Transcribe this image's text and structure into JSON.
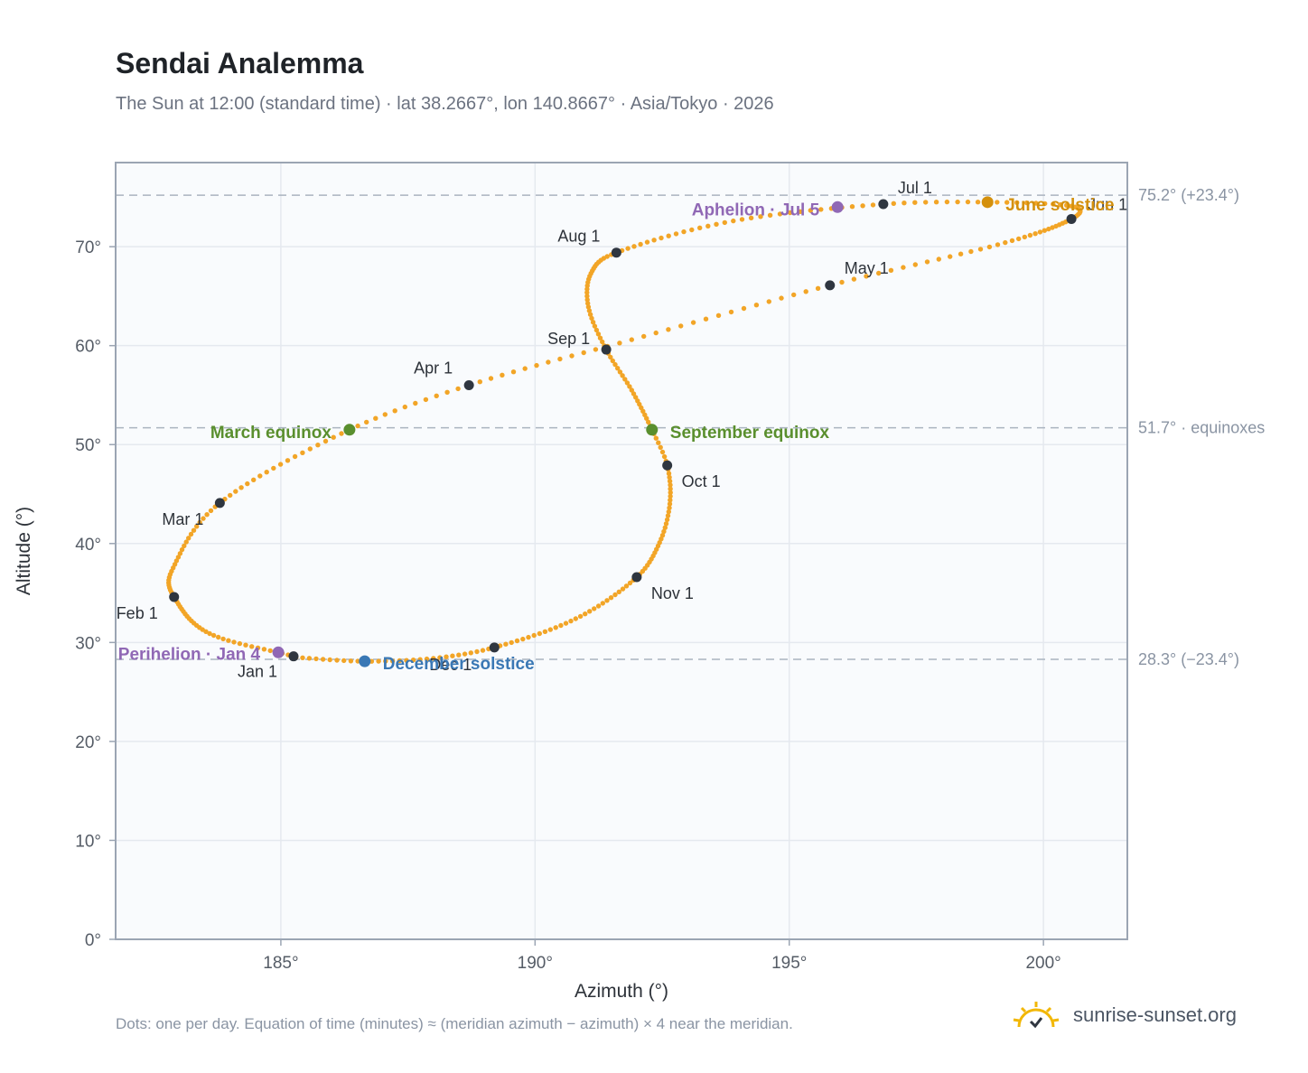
{
  "header": {
    "title": "Sendai Analemma",
    "subtitle": "The Sun at 12:00 (standard time) · lat 38.2667°, lon 140.8667° · Asia/Tokyo · 2026"
  },
  "footer": {
    "note": "Dots: one per day. Equation of time (minutes) ≈ (meridian azimuth − azimuth) × 4 near the meridian.",
    "brand": "sunrise-sunset.org",
    "brand_icon": "sun-logo-icon"
  },
  "colors": {
    "path": "#f2a527",
    "month_marker": "#2f3640",
    "equinox": "#5a8f2e",
    "june_solstice": "#d4900c",
    "december_solstice": "#3a78b5",
    "apsis": "#9068b5",
    "plot_bg": "#f9fbfd",
    "grid": "#e5e9ef",
    "reference_line": "#aab4c0",
    "frame": "#9ba5b3"
  },
  "chart_data": {
    "type": "scatter",
    "title": "Sendai Analemma",
    "xlabel": "Azimuth (°)",
    "ylabel": "Altitude (°)",
    "xlim": [
      181.75,
      201.65
    ],
    "ylim": [
      0,
      78.5
    ],
    "x_ticks": [
      185,
      190,
      195,
      200
    ],
    "x_tick_labels": [
      "185°",
      "190°",
      "195°",
      "200°"
    ],
    "y_ticks": [
      0,
      10,
      20,
      30,
      40,
      50,
      60,
      70
    ],
    "y_tick_labels": [
      "0°",
      "10°",
      "20°",
      "30°",
      "40°",
      "50°",
      "60°",
      "70°"
    ],
    "grid": true,
    "reference_lines": [
      {
        "y": 75.2,
        "label": "75.2° (+23.4°)"
      },
      {
        "y": 51.7,
        "label": "51.7° · equinoxes"
      },
      {
        "y": 28.3,
        "label": "28.3° (−23.4°)"
      }
    ],
    "monthly_markers": [
      {
        "label": "Jan 1",
        "date": "2026-01-01",
        "azimuth": 185.25,
        "altitude": 28.6
      },
      {
        "label": "Feb 1",
        "date": "2026-02-01",
        "azimuth": 182.9,
        "altitude": 34.6
      },
      {
        "label": "Mar 1",
        "date": "2026-03-01",
        "azimuth": 183.8,
        "altitude": 44.1
      },
      {
        "label": "Apr 1",
        "date": "2026-04-01",
        "azimuth": 188.7,
        "altitude": 56.0
      },
      {
        "label": "May 1",
        "date": "2026-05-01",
        "azimuth": 195.8,
        "altitude": 66.1
      },
      {
        "label": "Jun 1",
        "date": "2026-06-01",
        "azimuth": 200.55,
        "altitude": 72.8
      },
      {
        "label": "Jul 1",
        "date": "2026-07-01",
        "azimuth": 196.85,
        "altitude": 74.3
      },
      {
        "label": "Aug 1",
        "date": "2026-08-01",
        "azimuth": 191.6,
        "altitude": 69.4
      },
      {
        "label": "Sep 1",
        "date": "2026-09-01",
        "azimuth": 191.4,
        "altitude": 59.6
      },
      {
        "label": "Oct 1",
        "date": "2026-10-01",
        "azimuth": 192.6,
        "altitude": 47.9
      },
      {
        "label": "Nov 1",
        "date": "2026-11-01",
        "azimuth": 192.0,
        "altitude": 36.6
      },
      {
        "label": "Dec 1",
        "date": "2026-12-01",
        "azimuth": 189.2,
        "altitude": 29.5
      }
    ],
    "events": [
      {
        "label": "March equinox",
        "azimuth": 186.35,
        "altitude": 51.5,
        "kind": "equinox"
      },
      {
        "label": "June solstice",
        "azimuth": 198.9,
        "altitude": 74.5,
        "kind": "june_solstice"
      },
      {
        "label": "September equinox",
        "azimuth": 192.3,
        "altitude": 51.5,
        "kind": "equinox"
      },
      {
        "label": "December solstice",
        "azimuth": 186.65,
        "altitude": 28.1,
        "kind": "december_solstice"
      },
      {
        "label": "Perihelion · Jan 4",
        "azimuth": 184.95,
        "altitude": 29.0,
        "kind": "apsis"
      },
      {
        "label": "Aphelion · Jul 5",
        "azimuth": 195.95,
        "altitude": 74.0,
        "kind": "apsis"
      }
    ],
    "series": [
      {
        "points": [
          {
            "date": "2026-01-01",
            "azimuth": 185.25,
            "altitude": 28.6
          },
          {
            "date": "2026-01-16",
            "azimuth": 183.6,
            "altitude": 30.9
          },
          {
            "date": "2026-02-01",
            "azimuth": 182.9,
            "altitude": 34.6
          },
          {
            "date": "2026-02-11",
            "azimuth": 182.85,
            "altitude": 37.2
          },
          {
            "date": "2026-03-01",
            "azimuth": 183.8,
            "altitude": 44.1
          },
          {
            "date": "2026-03-20",
            "azimuth": 186.35,
            "altitude": 51.5
          },
          {
            "date": "2026-04-01",
            "azimuth": 188.7,
            "altitude": 56.0
          },
          {
            "date": "2026-04-15",
            "azimuth": 191.9,
            "altitude": 60.6
          },
          {
            "date": "2026-05-01",
            "azimuth": 195.8,
            "altitude": 66.1
          },
          {
            "date": "2026-05-16",
            "azimuth": 199.1,
            "altitude": 70.2
          },
          {
            "date": "2026-06-01",
            "azimuth": 200.55,
            "altitude": 72.8
          },
          {
            "date": "2026-06-11",
            "azimuth": 200.55,
            "altitude": 74.1
          },
          {
            "date": "2026-06-21",
            "azimuth": 198.9,
            "altitude": 74.5
          },
          {
            "date": "2026-07-01",
            "azimuth": 196.85,
            "altitude": 74.3
          },
          {
            "date": "2026-07-16",
            "azimuth": 193.9,
            "altitude": 72.6
          },
          {
            "date": "2026-08-01",
            "azimuth": 191.6,
            "altitude": 69.4
          },
          {
            "date": "2026-08-11",
            "azimuth": 191.1,
            "altitude": 67.3
          },
          {
            "date": "2026-08-21",
            "azimuth": 191.05,
            "altitude": 63.9
          },
          {
            "date": "2026-09-01",
            "azimuth": 191.4,
            "altitude": 59.6
          },
          {
            "date": "2026-09-12",
            "azimuth": 191.9,
            "altitude": 55.5
          },
          {
            "date": "2026-09-23",
            "azimuth": 192.3,
            "altitude": 51.5
          },
          {
            "date": "2026-10-01",
            "azimuth": 192.6,
            "altitude": 47.9
          },
          {
            "date": "2026-10-11",
            "azimuth": 192.65,
            "altitude": 44.0
          },
          {
            "date": "2026-10-21",
            "azimuth": 192.45,
            "altitude": 40.1
          },
          {
            "date": "2026-11-01",
            "azimuth": 192.0,
            "altitude": 36.6
          },
          {
            "date": "2026-11-16",
            "azimuth": 190.8,
            "altitude": 32.4
          },
          {
            "date": "2026-12-01",
            "azimuth": 189.2,
            "altitude": 29.5
          },
          {
            "date": "2026-12-11",
            "azimuth": 188.0,
            "altitude": 28.4
          },
          {
            "date": "2026-12-21",
            "azimuth": 186.65,
            "altitude": 28.1
          },
          {
            "date": "2026-12-31",
            "azimuth": 185.3,
            "altitude": 28.5
          }
        ]
      }
    ]
  }
}
